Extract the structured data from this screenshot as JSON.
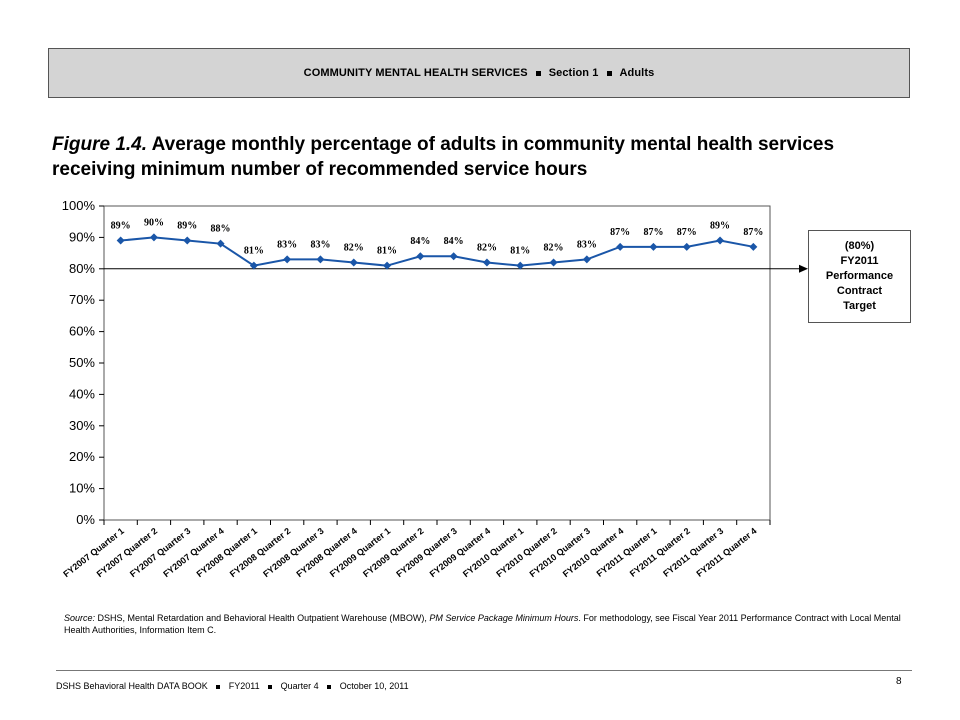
{
  "header": {
    "part1": "COMMUNITY MENTAL HEALTH SERVICES",
    "part2": "Section 1",
    "part3": "Adults"
  },
  "figure": {
    "label": "Figure 1.4.",
    "title": "Average monthly percentage of adults in community mental health services receiving minimum number of recommended service hours"
  },
  "target_box": {
    "line1": "(80%)",
    "line2": "FY2011",
    "line3": "Performance",
    "line4": "Contract",
    "line5": "Target"
  },
  "chart_data": {
    "type": "line",
    "categories": [
      "FY2007 Quarter 1",
      "FY2007 Quarter 2",
      "FY2007 Quarter 3",
      "FY2007 Quarter 4",
      "FY2008 Quarter 1",
      "FY2008 Quarter 2",
      "FY2008 Quarter 3",
      "FY2008 Quarter 4",
      "FY2009 Quarter 1",
      "FY2009 Quarter 2",
      "FY2009 Quarter 3",
      "FY2009 Quarter 4",
      "FY2010 Quarter 1",
      "FY2010 Quarter 2",
      "FY2010 Quarter 3",
      "FY2010 Quarter 4",
      "FY2011 Quarter 1",
      "FY2011 Quarter 2",
      "FY2011 Quarter 3",
      "FY2011 Quarter 4"
    ],
    "values": [
      89,
      90,
      89,
      88,
      81,
      83,
      83,
      82,
      81,
      84,
      84,
      82,
      81,
      82,
      83,
      87,
      87,
      87,
      89,
      87
    ],
    "data_labels": [
      "89%",
      "90%",
      "89%",
      "88%",
      "81%",
      "83%",
      "83%",
      "82%",
      "81%",
      "84%",
      "84%",
      "82%",
      "81%",
      "82%",
      "83%",
      "87%",
      "87%",
      "87%",
      "89%",
      "87%"
    ],
    "y_ticks": [
      0,
      10,
      20,
      30,
      40,
      50,
      60,
      70,
      80,
      90,
      100
    ],
    "y_tick_labels": [
      "0%",
      "10%",
      "20%",
      "30%",
      "40%",
      "50%",
      "60%",
      "70%",
      "80%",
      "90%",
      "100%"
    ],
    "ylim": [
      0,
      100
    ],
    "target_value": 80,
    "grid": false,
    "line_color": "#1a56a8",
    "marker": "diamond"
  },
  "source": {
    "label": "Source:",
    "text1": " DSHS, Mental Retardation and Behavioral Health Outpatient Warehouse (MBOW), ",
    "italic": "PM Service Package Minimum Hours",
    "text2": ". For methodology, see Fiscal Year 2011 Performance Contract with Local Mental Health Authorities, Information Item C."
  },
  "footer": {
    "part1": "DSHS Behavioral Health DATA BOOK",
    "part2": "FY2011",
    "part3": "Quarter 4",
    "part4": "October 10, 2011",
    "page_number": "8"
  }
}
